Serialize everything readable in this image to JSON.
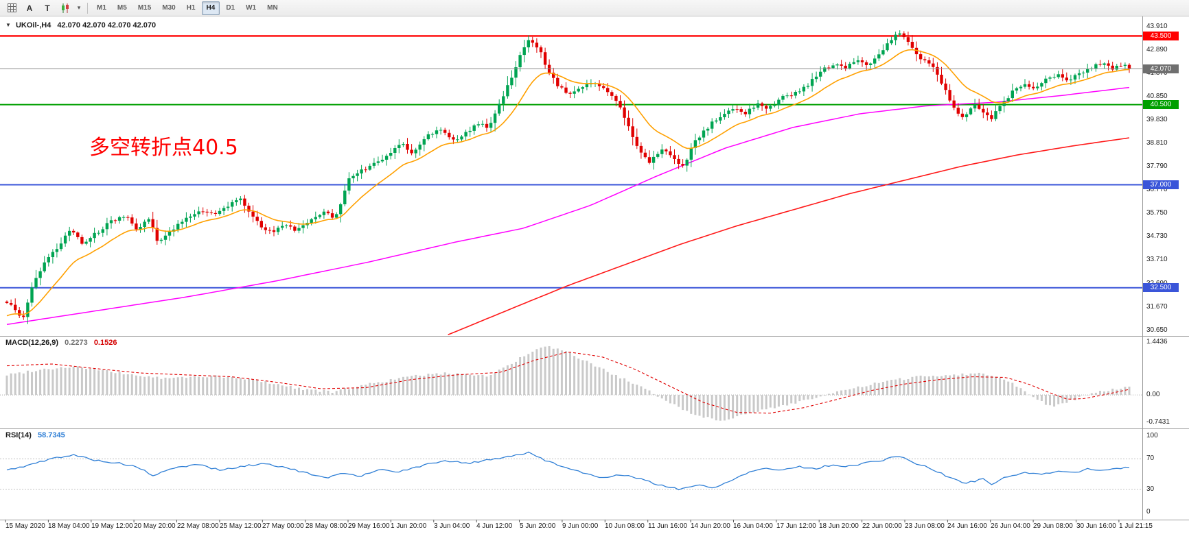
{
  "toolbar": {
    "icons": [
      {
        "name": "grid-icon",
        "glyph": ""
      },
      {
        "name": "text-label-tool-icon",
        "glyph": "A"
      },
      {
        "name": "template-tool-icon",
        "glyph": "T"
      },
      {
        "name": "candlestick-chart-icon",
        "glyph": ""
      },
      {
        "name": "chevron-down-icon",
        "glyph": "▾"
      }
    ],
    "timeframes": [
      "M1",
      "M5",
      "M15",
      "M30",
      "H1",
      "H4",
      "D1",
      "W1",
      "MN"
    ],
    "active_timeframe": "H4"
  },
  "chart": {
    "collapse_arrow": "▼",
    "symbol": "UKOil-,H4",
    "ohlc": "42.070 42.070 42.070 42.070",
    "annotation": {
      "text": "多空转折点40.5",
      "color": "#ff0000"
    },
    "current_price": {
      "label": "42.070",
      "value": 42.07,
      "color": "#6f6f6f"
    },
    "levels": [
      {
        "label": "43.500",
        "value": 43.5,
        "color": "#ff0000",
        "width": 2.4
      },
      {
        "label": "40.500",
        "value": 40.5,
        "color": "#009f00",
        "width": 2
      },
      {
        "label": "37.000",
        "value": 37.0,
        "color": "#3a55d9",
        "width": 2
      },
      {
        "label": "32.500",
        "value": 32.5,
        "color": "#3a55d9",
        "width": 2
      }
    ],
    "y_ticks": [
      {
        "label": "43.910",
        "value": 43.91
      },
      {
        "label": "42.890",
        "value": 42.89
      },
      {
        "label": "41.870",
        "value": 41.87
      },
      {
        "label": "40.850",
        "value": 40.85
      },
      {
        "label": "39.830",
        "value": 39.83
      },
      {
        "label": "38.810",
        "value": 38.81
      },
      {
        "label": "37.790",
        "value": 37.79
      },
      {
        "label": "36.770",
        "value": 36.77
      },
      {
        "label": "35.750",
        "value": 35.75
      },
      {
        "label": "34.730",
        "value": 34.73
      },
      {
        "label": "33.710",
        "value": 33.71
      },
      {
        "label": "32.690",
        "value": 32.69
      },
      {
        "label": "31.670",
        "value": 31.67
      },
      {
        "label": "30.650",
        "value": 30.65
      }
    ],
    "colors": {
      "bull": "#00a452",
      "bear": "#e00000",
      "ma_fast": "#ffa000",
      "ma_mid": "#ff00ff",
      "ma_slow": "#ff1a1a"
    }
  },
  "macd": {
    "name": "MACD(12,26,9)",
    "main_value": "0.2273",
    "signal_value": "0.1526",
    "scale": [
      {
        "label": "1.4436",
        "value": 1.4436
      },
      {
        "label": "0.00",
        "value": 0
      },
      {
        "label": "-0.7431",
        "value": -0.7431
      }
    ],
    "colors": {
      "histogram": "#c9c9c9",
      "signal": "#e00000"
    }
  },
  "rsi": {
    "name": "RSI(14)",
    "value": "58.7345",
    "scale": [
      {
        "label": "100",
        "value": 100
      },
      {
        "label": "70",
        "value": 70
      },
      {
        "label": "30",
        "value": 30
      },
      {
        "label": "0",
        "value": 0
      }
    ],
    "dashed_levels": [
      70,
      30
    ],
    "color": "#2f7fd6"
  },
  "time_axis": [
    "15 May 2020",
    "18 May 04:00",
    "19 May 12:00",
    "20 May 20:00",
    "22 May 08:00",
    "25 May 12:00",
    "27 May 00:00",
    "28 May 08:00",
    "29 May 16:00",
    "1 Jun 20:00",
    "3 Jun 04:00",
    "4 Jun 12:00",
    "5 Jun 20:00",
    "9 Jun 00:00",
    "10 Jun 08:00",
    "11 Jun 16:00",
    "14 Jun 20:00",
    "16 Jun 04:00",
    "17 Jun 12:00",
    "18 Jun 20:00",
    "22 Jun 00:00",
    "23 Jun 08:00",
    "24 Jun 16:00",
    "26 Jun 04:00",
    "29 Jun 08:00",
    "30 Jun 16:00",
    "1 Jul 21:15"
  ],
  "chart_data": {
    "type": "candlestick",
    "symbol": "UKOil-",
    "timeframe": "H4",
    "bars": 270,
    "price_range": [
      30.4,
      44.35
    ],
    "last_close": 42.07,
    "close_path": [
      [
        0,
        31.9
      ],
      [
        0.008,
        31.5
      ],
      [
        0.014,
        31.05
      ],
      [
        0.024,
        32.8
      ],
      [
        0.034,
        33.6
      ],
      [
        0.047,
        34.4
      ],
      [
        0.057,
        35.1
      ],
      [
        0.067,
        34.4
      ],
      [
        0.08,
        34.9
      ],
      [
        0.093,
        35.4
      ],
      [
        0.106,
        35.7
      ],
      [
        0.116,
        35.0
      ],
      [
        0.125,
        35.6
      ],
      [
        0.135,
        34.5
      ],
      [
        0.145,
        34.9
      ],
      [
        0.158,
        35.5
      ],
      [
        0.171,
        35.8
      ],
      [
        0.184,
        35.7
      ],
      [
        0.197,
        36.1
      ],
      [
        0.207,
        36.4
      ],
      [
        0.217,
        35.8
      ],
      [
        0.227,
        35.1
      ],
      [
        0.237,
        34.9
      ],
      [
        0.246,
        35.3
      ],
      [
        0.256,
        35.0
      ],
      [
        0.269,
        35.4
      ],
      [
        0.282,
        35.8
      ],
      [
        0.292,
        35.6
      ],
      [
        0.3,
        36.5
      ],
      [
        0.303,
        37.3
      ],
      [
        0.315,
        37.6
      ],
      [
        0.328,
        37.9
      ],
      [
        0.341,
        38.3
      ],
      [
        0.351,
        38.8
      ],
      [
        0.361,
        38.4
      ],
      [
        0.374,
        39.1
      ],
      [
        0.387,
        39.4
      ],
      [
        0.397,
        38.9
      ],
      [
        0.41,
        39.3
      ],
      [
        0.42,
        39.7
      ],
      [
        0.429,
        39.5
      ],
      [
        0.439,
        40.5
      ],
      [
        0.449,
        41.6
      ],
      [
        0.459,
        42.9
      ],
      [
        0.465,
        43.3
      ],
      [
        0.475,
        42.9
      ],
      [
        0.482,
        42.0
      ],
      [
        0.491,
        41.3
      ],
      [
        0.501,
        41.0
      ],
      [
        0.511,
        41.3
      ],
      [
        0.524,
        41.4
      ],
      [
        0.534,
        41.1
      ],
      [
        0.544,
        40.6
      ],
      [
        0.554,
        39.5
      ],
      [
        0.563,
        38.6
      ],
      [
        0.573,
        38.0
      ],
      [
        0.583,
        38.6
      ],
      [
        0.593,
        38.2
      ],
      [
        0.603,
        37.8
      ],
      [
        0.612,
        38.8
      ],
      [
        0.622,
        39.4
      ],
      [
        0.635,
        40.0
      ],
      [
        0.648,
        40.3
      ],
      [
        0.658,
        40.1
      ],
      [
        0.668,
        40.5
      ],
      [
        0.678,
        40.3
      ],
      [
        0.691,
        40.8
      ],
      [
        0.704,
        41.0
      ],
      [
        0.714,
        41.4
      ],
      [
        0.727,
        42.0
      ],
      [
        0.737,
        42.3
      ],
      [
        0.746,
        42.1
      ],
      [
        0.76,
        42.5
      ],
      [
        0.769,
        42.2
      ],
      [
        0.779,
        42.8
      ],
      [
        0.789,
        43.4
      ],
      [
        0.795,
        43.6
      ],
      [
        0.805,
        43.1
      ],
      [
        0.815,
        42.5
      ],
      [
        0.825,
        42.1
      ],
      [
        0.835,
        41.3
      ],
      [
        0.844,
        40.3
      ],
      [
        0.851,
        39.9
      ],
      [
        0.861,
        40.5
      ],
      [
        0.871,
        40.1
      ],
      [
        0.877,
        39.9
      ],
      [
        0.887,
        40.6
      ],
      [
        0.897,
        41.1
      ],
      [
        0.907,
        41.4
      ],
      [
        0.917,
        41.2
      ],
      [
        0.926,
        41.6
      ],
      [
        0.936,
        41.8
      ],
      [
        0.946,
        41.6
      ],
      [
        0.956,
        41.9
      ],
      [
        0.966,
        42.1
      ],
      [
        0.975,
        42.3
      ],
      [
        0.985,
        42.1
      ],
      [
        0.995,
        42.3
      ],
      [
        1,
        42.07
      ]
    ],
    "ma_fast_ema_period": 15,
    "ma_mid_path": [
      [
        0,
        30.9
      ],
      [
        0.08,
        31.5
      ],
      [
        0.16,
        32.1
      ],
      [
        0.24,
        32.8
      ],
      [
        0.32,
        33.6
      ],
      [
        0.4,
        34.5
      ],
      [
        0.46,
        35.1
      ],
      [
        0.52,
        36.1
      ],
      [
        0.58,
        37.4
      ],
      [
        0.64,
        38.6
      ],
      [
        0.7,
        39.5
      ],
      [
        0.76,
        40.1
      ],
      [
        0.82,
        40.45
      ],
      [
        0.88,
        40.6
      ],
      [
        0.94,
        40.9
      ],
      [
        1,
        41.25
      ]
    ],
    "ma_slow_path": [
      [
        0.393,
        30.45
      ],
      [
        0.45,
        31.6
      ],
      [
        0.5,
        32.6
      ],
      [
        0.55,
        33.5
      ],
      [
        0.6,
        34.4
      ],
      [
        0.65,
        35.2
      ],
      [
        0.7,
        35.9
      ],
      [
        0.75,
        36.6
      ],
      [
        0.8,
        37.2
      ],
      [
        0.85,
        37.8
      ],
      [
        0.9,
        38.3
      ],
      [
        0.95,
        38.7
      ],
      [
        1,
        39.05
      ]
    ],
    "macd_hist_path": [
      [
        0,
        0.55
      ],
      [
        0.03,
        0.7
      ],
      [
        0.06,
        0.78
      ],
      [
        0.1,
        0.6
      ],
      [
        0.14,
        0.45
      ],
      [
        0.18,
        0.52
      ],
      [
        0.22,
        0.42
      ],
      [
        0.26,
        0.18
      ],
      [
        0.29,
        0.08
      ],
      [
        0.33,
        0.35
      ],
      [
        0.37,
        0.55
      ],
      [
        0.4,
        0.6
      ],
      [
        0.43,
        0.52
      ],
      [
        0.46,
        1.05
      ],
      [
        0.48,
        1.35
      ],
      [
        0.5,
        1.15
      ],
      [
        0.53,
        0.72
      ],
      [
        0.56,
        0.28
      ],
      [
        0.585,
        -0.1
      ],
      [
        0.61,
        -0.52
      ],
      [
        0.635,
        -0.7
      ],
      [
        0.66,
        -0.52
      ],
      [
        0.69,
        -0.3
      ],
      [
        0.72,
        -0.08
      ],
      [
        0.75,
        0.15
      ],
      [
        0.78,
        0.35
      ],
      [
        0.81,
        0.5
      ],
      [
        0.84,
        0.55
      ],
      [
        0.87,
        0.6
      ],
      [
        0.895,
        0.35
      ],
      [
        0.915,
        -0.05
      ],
      [
        0.93,
        -0.32
      ],
      [
        0.945,
        -0.18
      ],
      [
        0.96,
        -0.02
      ],
      [
        0.98,
        0.12
      ],
      [
        1,
        0.2273
      ]
    ],
    "macd_signal_path": [
      [
        0,
        0.8
      ],
      [
        0.04,
        0.85
      ],
      [
        0.08,
        0.72
      ],
      [
        0.12,
        0.6
      ],
      [
        0.16,
        0.55
      ],
      [
        0.2,
        0.5
      ],
      [
        0.24,
        0.35
      ],
      [
        0.28,
        0.17
      ],
      [
        0.32,
        0.2
      ],
      [
        0.36,
        0.42
      ],
      [
        0.4,
        0.55
      ],
      [
        0.44,
        0.62
      ],
      [
        0.47,
        0.95
      ],
      [
        0.5,
        1.18
      ],
      [
        0.53,
        1.05
      ],
      [
        0.56,
        0.7
      ],
      [
        0.59,
        0.25
      ],
      [
        0.62,
        -0.2
      ],
      [
        0.65,
        -0.48
      ],
      [
        0.68,
        -0.5
      ],
      [
        0.71,
        -0.35
      ],
      [
        0.74,
        -0.12
      ],
      [
        0.77,
        0.12
      ],
      [
        0.8,
        0.3
      ],
      [
        0.83,
        0.42
      ],
      [
        0.86,
        0.5
      ],
      [
        0.89,
        0.48
      ],
      [
        0.91,
        0.3
      ],
      [
        0.93,
        0.05
      ],
      [
        0.945,
        -0.12
      ],
      [
        0.96,
        -0.1
      ],
      [
        0.98,
        0.02
      ],
      [
        1,
        0.1526
      ]
    ],
    "rsi_path": [
      [
        0,
        55
      ],
      [
        0.02,
        62
      ],
      [
        0.045,
        72
      ],
      [
        0.06,
        75
      ],
      [
        0.08,
        68
      ],
      [
        0.1,
        64
      ],
      [
        0.115,
        60
      ],
      [
        0.13,
        48
      ],
      [
        0.15,
        58
      ],
      [
        0.17,
        63
      ],
      [
        0.19,
        55
      ],
      [
        0.21,
        60
      ],
      [
        0.23,
        64
      ],
      [
        0.25,
        58
      ],
      [
        0.27,
        50
      ],
      [
        0.285,
        44
      ],
      [
        0.3,
        52
      ],
      [
        0.315,
        47
      ],
      [
        0.33,
        56
      ],
      [
        0.35,
        53
      ],
      [
        0.37,
        61
      ],
      [
        0.39,
        68
      ],
      [
        0.41,
        64
      ],
      [
        0.43,
        69
      ],
      [
        0.45,
        74
      ],
      [
        0.465,
        78
      ],
      [
        0.48,
        68
      ],
      [
        0.5,
        58
      ],
      [
        0.515,
        50
      ],
      [
        0.53,
        46
      ],
      [
        0.55,
        49
      ],
      [
        0.565,
        43
      ],
      [
        0.58,
        36
      ],
      [
        0.6,
        30
      ],
      [
        0.615,
        36
      ],
      [
        0.63,
        31
      ],
      [
        0.645,
        42
      ],
      [
        0.66,
        52
      ],
      [
        0.675,
        58
      ],
      [
        0.69,
        55
      ],
      [
        0.705,
        60
      ],
      [
        0.72,
        57
      ],
      [
        0.735,
        62
      ],
      [
        0.75,
        60
      ],
      [
        0.765,
        65
      ],
      [
        0.78,
        68
      ],
      [
        0.795,
        74
      ],
      [
        0.81,
        64
      ],
      [
        0.825,
        56
      ],
      [
        0.84,
        45
      ],
      [
        0.855,
        38
      ],
      [
        0.87,
        44
      ],
      [
        0.877,
        36
      ],
      [
        0.89,
        46
      ],
      [
        0.905,
        52
      ],
      [
        0.92,
        49
      ],
      [
        0.935,
        54
      ],
      [
        0.95,
        52
      ],
      [
        0.965,
        57
      ],
      [
        0.98,
        54
      ],
      [
        0.99,
        58
      ],
      [
        1,
        58.7
      ]
    ]
  }
}
